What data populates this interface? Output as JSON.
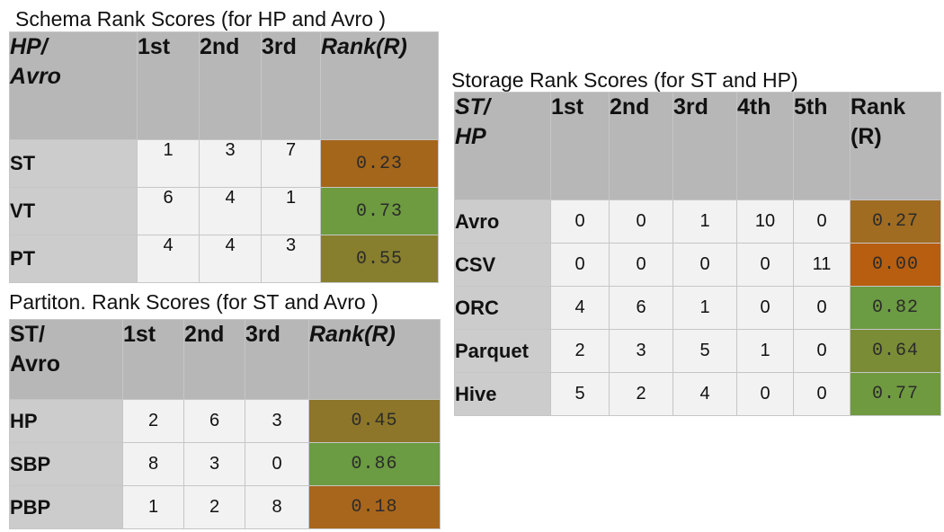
{
  "schema": {
    "caption": "Schema Rank Scores (for HP and Avro )",
    "corner": [
      "HP/",
      "Avro"
    ],
    "headers": [
      "1st",
      "2nd",
      "3rd",
      "Rank(R)"
    ],
    "rows": [
      {
        "label": "ST",
        "values": [
          "1",
          "3",
          "7"
        ],
        "score": "0.23",
        "color": "#a4661b"
      },
      {
        "label": "VT",
        "values": [
          "6",
          "4",
          "1"
        ],
        "score": "0.73",
        "color": "#6e9b40"
      },
      {
        "label": "PT",
        "values": [
          "4",
          "4",
          "3"
        ],
        "score": "0.55",
        "color": "#877f2e"
      }
    ]
  },
  "partition": {
    "caption": "Partiton. Rank Scores (for ST and Avro )",
    "corner": [
      "ST/",
      "Avro"
    ],
    "headers": [
      "1st",
      "2nd",
      "3rd",
      "Rank(R)"
    ],
    "rows": [
      {
        "label": "HP",
        "values": [
          "2",
          "6",
          "3"
        ],
        "score": "0.45",
        "color": "#8d762a"
      },
      {
        "label": "SBP",
        "values": [
          "8",
          "3",
          "0"
        ],
        "score": "0.86",
        "color": "#6b9b42"
      },
      {
        "label": "PBP",
        "values": [
          "1",
          "2",
          "8"
        ],
        "score": "0.18",
        "color": "#a8661c"
      }
    ]
  },
  "storage": {
    "caption": "Storage Rank Scores (for ST and HP)",
    "corner": [
      "ST/",
      "HP"
    ],
    "headers": [
      "1st",
      "2nd",
      "3rd",
      "4th",
      "5th",
      "Rank",
      "(R)"
    ],
    "rows": [
      {
        "label": "Avro",
        "values": [
          "0",
          "0",
          "1",
          "10",
          "0"
        ],
        "score": "0.27",
        "color": "#9f6c21"
      },
      {
        "label": "CSV",
        "values": [
          "0",
          "0",
          "0",
          "0",
          "11"
        ],
        "score": "0.00",
        "color": "#b75e10"
      },
      {
        "label": "ORC",
        "values": [
          "4",
          "6",
          "1",
          "0",
          "0"
        ],
        "score": "0.82",
        "color": "#6b9b42"
      },
      {
        "label": "Parquet",
        "values": [
          "2",
          "3",
          "5",
          "1",
          "0"
        ],
        "score": "0.64",
        "color": "#7a8c36"
      },
      {
        "label": "Hive",
        "values": [
          "5",
          "2",
          "4",
          "0",
          "0"
        ],
        "score": "0.77",
        "color": "#6f9a40"
      }
    ]
  }
}
